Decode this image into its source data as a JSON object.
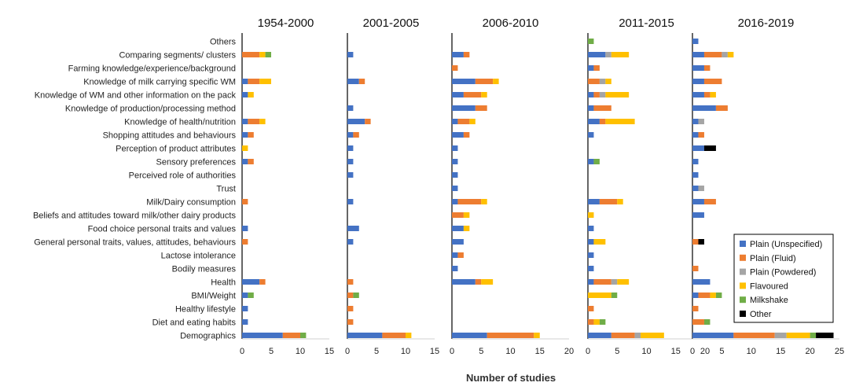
{
  "chart_data": {
    "type": "bar",
    "orientation": "horizontal",
    "stacked": true,
    "xlabel": "Number of studies",
    "categories": [
      "Others",
      "Comparing  segments/ clusters",
      "Farming knowledge/experience/background",
      "Knowledge of milk carrying specific WM",
      "Knowledge of WM and other information on the pack",
      "Knowledge of production/processing method",
      "Knowledge of health/nutrition",
      "Shopping attitudes and behaviours",
      "Perception of product attributes",
      "Sensory preferences",
      "Perceived role of authorities",
      "Trust",
      "Milk/Dairy consumption",
      "Beliefs and attitudes toward milk/other dairy products",
      "Food choice personal traits and values",
      "General personal traits, values, attitudes, behaviours",
      "Lactose intolerance",
      "Bodily measures",
      "Health",
      "BMI/Weight",
      "Healthy lifestyle",
      "Diet and eating habits",
      "Demographics"
    ],
    "series_names": [
      "Plain (Unspecified)",
      "Plain (Fluid)",
      "Plain (Powdered)",
      "Flavoured",
      "Milkshake",
      "Other"
    ],
    "series_colors": [
      "#4472c4",
      "#ed7d31",
      "#a5a5a5",
      "#ffc000",
      "#70ad47",
      "#000000"
    ],
    "panels": [
      {
        "title": "1954-2000",
        "xlim": [
          0,
          15
        ],
        "ticks": [
          "0",
          "5",
          "10",
          "15"
        ],
        "values": [
          [
            0,
            0,
            0,
            0,
            0,
            0
          ],
          [
            0,
            3,
            0,
            1,
            1,
            0
          ],
          [
            0,
            0,
            0,
            0,
            0,
            0
          ],
          [
            1,
            2,
            0,
            2,
            0,
            0
          ],
          [
            1,
            0,
            0,
            1,
            0,
            0
          ],
          [
            0,
            0,
            0,
            0,
            0,
            0
          ],
          [
            1,
            2,
            0,
            1,
            0,
            0
          ],
          [
            1,
            1,
            0,
            0,
            0,
            0
          ],
          [
            0,
            0,
            0,
            1,
            0,
            0
          ],
          [
            1,
            1,
            0,
            0,
            0,
            0
          ],
          [
            0,
            0,
            0,
            0,
            0,
            0
          ],
          [
            0,
            0,
            0,
            0,
            0,
            0
          ],
          [
            0,
            1,
            0,
            0,
            0,
            0
          ],
          [
            0,
            0,
            0,
            0,
            0,
            0
          ],
          [
            1,
            0,
            0,
            0,
            0,
            0
          ],
          [
            0,
            1,
            0,
            0,
            0,
            0
          ],
          [
            0,
            0,
            0,
            0,
            0,
            0
          ],
          [
            0,
            0,
            0,
            0,
            0,
            0
          ],
          [
            3,
            1,
            0,
            0,
            0,
            0
          ],
          [
            1,
            0,
            0,
            0,
            1,
            0
          ],
          [
            1,
            0,
            0,
            0,
            0,
            0
          ],
          [
            1,
            0,
            0,
            0,
            0,
            0
          ],
          [
            7,
            3,
            0,
            0,
            1,
            0
          ]
        ]
      },
      {
        "title": "2001-2005",
        "xlim": [
          0,
          15
        ],
        "ticks": [
          "0",
          "5",
          "10",
          "15"
        ],
        "values": [
          [
            0,
            0,
            0,
            0,
            0,
            0
          ],
          [
            1,
            0,
            0,
            0,
            0,
            0
          ],
          [
            0,
            0,
            0,
            0,
            0,
            0
          ],
          [
            2,
            1,
            0,
            0,
            0,
            0
          ],
          [
            0,
            0,
            0,
            0,
            0,
            0
          ],
          [
            1,
            0,
            0,
            0,
            0,
            0
          ],
          [
            3,
            1,
            0,
            0,
            0,
            0
          ],
          [
            1,
            1,
            0,
            0,
            0,
            0
          ],
          [
            1,
            0,
            0,
            0,
            0,
            0
          ],
          [
            1,
            0,
            0,
            0,
            0,
            0
          ],
          [
            1,
            0,
            0,
            0,
            0,
            0
          ],
          [
            0,
            0,
            0,
            0,
            0,
            0
          ],
          [
            1,
            0,
            0,
            0,
            0,
            0
          ],
          [
            0,
            0,
            0,
            0,
            0,
            0
          ],
          [
            2,
            0,
            0,
            0,
            0,
            0
          ],
          [
            1,
            0,
            0,
            0,
            0,
            0
          ],
          [
            0,
            0,
            0,
            0,
            0,
            0
          ],
          [
            0,
            0,
            0,
            0,
            0,
            0
          ],
          [
            0,
            1,
            0,
            0,
            0,
            0
          ],
          [
            0,
            1,
            0,
            0,
            1,
            0
          ],
          [
            0,
            1,
            0,
            0,
            0,
            0
          ],
          [
            0,
            1,
            0,
            0,
            0,
            0
          ],
          [
            6,
            4,
            0,
            1,
            0,
            0
          ]
        ]
      },
      {
        "title": "2006-2010",
        "xlim": [
          0,
          20
        ],
        "ticks": [
          "0",
          "5",
          "10",
          "15",
          "20"
        ],
        "values": [
          [
            0,
            0,
            0,
            0,
            0,
            0
          ],
          [
            2,
            1,
            0,
            0,
            0,
            0
          ],
          [
            0,
            1,
            0,
            0,
            0,
            0
          ],
          [
            4,
            3,
            0,
            1,
            0,
            0
          ],
          [
            2,
            3,
            0,
            1,
            0,
            0
          ],
          [
            4,
            2,
            0,
            0,
            0,
            0
          ],
          [
            1,
            2,
            0,
            1,
            0,
            0
          ],
          [
            2,
            1,
            0,
            0,
            0,
            0
          ],
          [
            1,
            0,
            0,
            0,
            0,
            0
          ],
          [
            1,
            0,
            0,
            0,
            0,
            0
          ],
          [
            1,
            0,
            0,
            0,
            0,
            0
          ],
          [
            1,
            0,
            0,
            0,
            0,
            0
          ],
          [
            1,
            4,
            0,
            1,
            0,
            0
          ],
          [
            0,
            2,
            0,
            1,
            0,
            0
          ],
          [
            2,
            0,
            0,
            1,
            0,
            0
          ],
          [
            2,
            0,
            0,
            0,
            0,
            0
          ],
          [
            1,
            1,
            0,
            0,
            0,
            0
          ],
          [
            1,
            0,
            0,
            0,
            0,
            0
          ],
          [
            4,
            1,
            0,
            2,
            0,
            0
          ],
          [
            0,
            0,
            0,
            0,
            0,
            0
          ],
          [
            0,
            0,
            0,
            0,
            0,
            0
          ],
          [
            0,
            0,
            0,
            0,
            0,
            0
          ],
          [
            6,
            8,
            0,
            1,
            0,
            0
          ]
        ]
      },
      {
        "title": "2011-2015",
        "xlim": [
          0,
          20
        ],
        "ticks": [
          "0",
          "5",
          "10",
          "15",
          "20"
        ],
        "values": [
          [
            0,
            0,
            0,
            0,
            1,
            0
          ],
          [
            3,
            0,
            1,
            3,
            0,
            0
          ],
          [
            1,
            1,
            0,
            0,
            0,
            0
          ],
          [
            0,
            2,
            1,
            1,
            0,
            0
          ],
          [
            1,
            1,
            1,
            4,
            0,
            0
          ],
          [
            1,
            3,
            0,
            0,
            0,
            0
          ],
          [
            2,
            1,
            0,
            5,
            0,
            0
          ],
          [
            1,
            0,
            0,
            0,
            0,
            0
          ],
          [
            0,
            0,
            0,
            0,
            0,
            0
          ],
          [
            1,
            0,
            0,
            0,
            1,
            0
          ],
          [
            0,
            0,
            0,
            0,
            0,
            0
          ],
          [
            0,
            0,
            0,
            0,
            0,
            0
          ],
          [
            2,
            3,
            0,
            1,
            0,
            0
          ],
          [
            0,
            0,
            0,
            1,
            0,
            0
          ],
          [
            1,
            0,
            0,
            0,
            0,
            0
          ],
          [
            1,
            0,
            0,
            2,
            0,
            0
          ],
          [
            1,
            0,
            0,
            0,
            0,
            0
          ],
          [
            1,
            0,
            0,
            0,
            0,
            0
          ],
          [
            1,
            3,
            1,
            2,
            0,
            0
          ],
          [
            0,
            0,
            0,
            4,
            1,
            0
          ],
          [
            0,
            1,
            0,
            0,
            0,
            0
          ],
          [
            0,
            1,
            0,
            1,
            1,
            0
          ],
          [
            4,
            4,
            1,
            4,
            0,
            0
          ]
        ]
      },
      {
        "title": "2016-2019",
        "xlim": [
          0,
          25
        ],
        "ticks": [
          "0",
          "5",
          "10",
          "15",
          "20",
          "25"
        ],
        "values": [
          [
            1,
            0,
            0,
            0,
            0,
            0
          ],
          [
            2,
            3,
            1,
            1,
            0,
            0
          ],
          [
            2,
            1,
            0,
            0,
            0,
            0
          ],
          [
            2,
            3,
            0,
            0,
            0,
            0
          ],
          [
            2,
            1,
            0,
            1,
            0,
            0
          ],
          [
            4,
            2,
            0,
            0,
            0,
            0
          ],
          [
            1,
            0,
            1,
            0,
            0,
            0
          ],
          [
            1,
            1,
            0,
            0,
            0,
            0
          ],
          [
            2,
            0,
            0,
            0,
            0,
            2
          ],
          [
            1,
            0,
            0,
            0,
            0,
            0
          ],
          [
            1,
            0,
            0,
            0,
            0,
            0
          ],
          [
            1,
            0,
            1,
            0,
            0,
            0
          ],
          [
            2,
            2,
            0,
            0,
            0,
            0
          ],
          [
            2,
            0,
            0,
            0,
            0,
            0
          ],
          [
            0,
            0,
            0,
            0,
            0,
            0
          ],
          [
            0,
            1,
            0,
            0,
            0,
            1
          ],
          [
            0,
            0,
            0,
            0,
            0,
            0
          ],
          [
            0,
            1,
            0,
            0,
            0,
            0
          ],
          [
            3,
            0,
            0,
            0,
            0,
            0
          ],
          [
            1,
            2,
            0,
            1,
            1,
            0
          ],
          [
            0,
            1,
            0,
            0,
            0,
            0
          ],
          [
            0,
            2,
            0,
            0,
            1,
            0
          ],
          [
            7,
            7,
            2,
            4,
            1,
            3
          ]
        ]
      }
    ],
    "legend_position": "inside-right-bottom"
  }
}
